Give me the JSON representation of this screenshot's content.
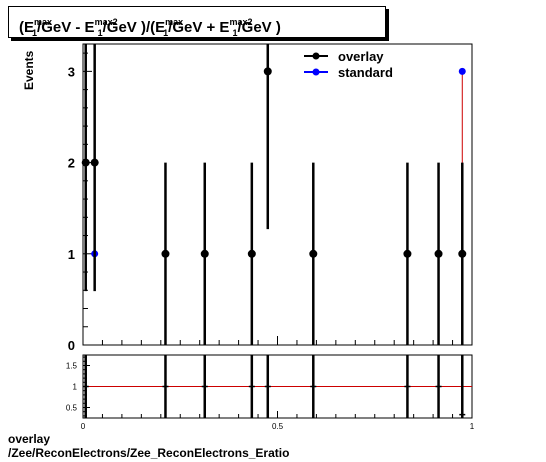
{
  "title_parts": {
    "open": "(E",
    "sup1": "max",
    "sub1": "1",
    "mid1": "/GeV - E",
    "sup2": "max2",
    "sub2": "1",
    "mid2": "/GeV )/(E",
    "sup3": "max",
    "sub3": "1",
    "mid3": "/GeV + E",
    "sup4": "max2",
    "sub4": "1",
    "close": "/GeV )"
  },
  "footer": {
    "line1": "overlay",
    "line2": "/Zee/ReconElectrons/Zee_ReconElectrons_Eratio"
  },
  "colors": {
    "overlay": "#000000",
    "standard": "#0000ff",
    "ratio_line": "#cc0000",
    "standard_line": "#cc0000"
  },
  "chart_data": [
    {
      "type": "scatter",
      "ylabel": "Events",
      "xlim": [
        0,
        1
      ],
      "ylim": [
        0,
        3.3
      ],
      "yticks": [
        "0",
        "1",
        "2",
        "3"
      ],
      "legend_position": "top-right",
      "series": [
        {
          "name": "overlay",
          "marker": "circle",
          "points": [
            {
              "x": 0.007,
              "y": 2,
              "err": 1.41
            },
            {
              "x": 0.03,
              "y": 2,
              "err": 1.41
            },
            {
              "x": 0.212,
              "y": 1,
              "err": 1
            },
            {
              "x": 0.313,
              "y": 1,
              "err": 1
            },
            {
              "x": 0.434,
              "y": 1,
              "err": 1
            },
            {
              "x": 0.475,
              "y": 3,
              "err": 1.73
            },
            {
              "x": 0.592,
              "y": 1,
              "err": 1
            },
            {
              "x": 0.834,
              "y": 1,
              "err": 1
            },
            {
              "x": 0.914,
              "y": 1,
              "err": 1
            },
            {
              "x": 0.975,
              "y": 1,
              "err": 1
            }
          ]
        },
        {
          "name": "standard",
          "marker": "circle",
          "points": [
            {
              "x": 0.03,
              "y": 1
            },
            {
              "x": 0.975,
              "y": 3
            }
          ]
        }
      ]
    },
    {
      "type": "scatter",
      "xlim": [
        0,
        1
      ],
      "ylim": [
        0.25,
        1.75
      ],
      "yticks": [
        "0.5",
        "1",
        "1.5"
      ],
      "xticks": [
        "0",
        "0.5",
        "1"
      ],
      "reference_line": 1,
      "points": [
        {
          "x": 0.007,
          "y": 1
        },
        {
          "x": 0.212,
          "y": 1
        },
        {
          "x": 0.313,
          "y": 1
        },
        {
          "x": 0.434,
          "y": 1
        },
        {
          "x": 0.475,
          "y": 1
        },
        {
          "x": 0.592,
          "y": 1
        },
        {
          "x": 0.834,
          "y": 1
        },
        {
          "x": 0.914,
          "y": 1
        },
        {
          "x": 0.975,
          "y": 0.33
        }
      ]
    }
  ]
}
